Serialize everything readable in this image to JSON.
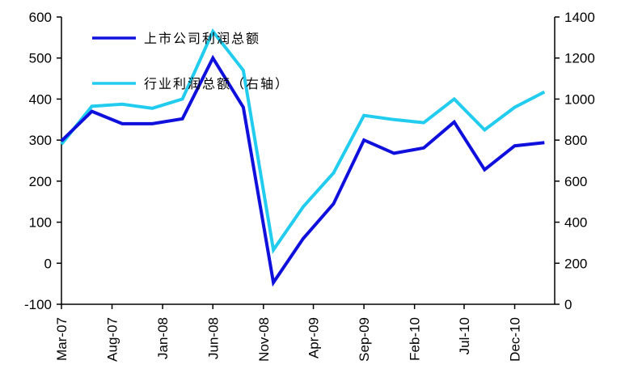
{
  "chart_data": {
    "type": "line",
    "x": [
      "Mar-07",
      "May-07",
      "Jul-07",
      "Sep-07",
      "Nov-07",
      "Jan-08",
      "Mar-08",
      "May-08",
      "Jun-08",
      "Aug-08",
      "Oct-08",
      "Dec-08",
      "Feb-09",
      "Apr-09",
      "Jun-09",
      "Aug-09",
      "Oct-09",
      "Dec-09",
      "Feb-10",
      "Apr-10",
      "Jun-10",
      "Aug-10",
      "Oct-10",
      "Dec-10",
      "Feb-11",
      "Apr-11"
    ],
    "x_tick_labels": [
      "Mar-07",
      "Aug-07",
      "Jan-08",
      "Jun-08",
      "Nov-08",
      "Apr-09",
      "Sep-09",
      "Feb-10",
      "Jul-10",
      "Dec-10"
    ],
    "left_axis": {
      "ylim": [
        -100,
        600
      ],
      "ticks": [
        "-100",
        "0",
        "100",
        "200",
        "300",
        "400",
        "500",
        "600"
      ]
    },
    "right_axis": {
      "ylim": [
        0,
        1400
      ],
      "ticks": [
        "0",
        "200",
        "400",
        "600",
        "800",
        "1000",
        "1200",
        "1400"
      ]
    },
    "series": [
      {
        "name": "上市公司利润总额",
        "axis": "left",
        "color": "#1010dd",
        "points": [
          {
            "x": "Mar-07",
            "y": 298
          },
          {
            "x": "Jun-07",
            "y": 370
          },
          {
            "x": "Sep-07",
            "y": 340
          },
          {
            "x": "Dec-07",
            "y": 340
          },
          {
            "x": "Mar-08",
            "y": 352
          },
          {
            "x": "Jun-08",
            "y": 500
          },
          {
            "x": "Sep-08",
            "y": 380
          },
          {
            "x": "Dec-08",
            "y": -47
          },
          {
            "x": "Mar-09",
            "y": 60
          },
          {
            "x": "Jun-09",
            "y": 145
          },
          {
            "x": "Sep-09",
            "y": 300
          },
          {
            "x": "Dec-09",
            "y": 268
          },
          {
            "x": "Mar-10",
            "y": 281
          },
          {
            "x": "Jun-10",
            "y": 344
          },
          {
            "x": "Sep-10",
            "y": 228
          },
          {
            "x": "Dec-10",
            "y": 286
          },
          {
            "x": "Mar-11",
            "y": 294
          }
        ]
      },
      {
        "name": "行业利润总额（右轴）",
        "axis": "right",
        "color": "#22ccee",
        "points": [
          {
            "x": "Mar-07",
            "y": 780
          },
          {
            "x": "Jun-07",
            "y": 965
          },
          {
            "x": "Sep-07",
            "y": 975
          },
          {
            "x": "Dec-07",
            "y": 955
          },
          {
            "x": "Mar-08",
            "y": 1000
          },
          {
            "x": "Jun-08",
            "y": 1330
          },
          {
            "x": "Sep-08",
            "y": 1140
          },
          {
            "x": "Dec-08",
            "y": 265
          },
          {
            "x": "Mar-09",
            "y": 475
          },
          {
            "x": "Jun-09",
            "y": 640
          },
          {
            "x": "Sep-09",
            "y": 920
          },
          {
            "x": "Dec-09",
            "y": 900
          },
          {
            "x": "Mar-10",
            "y": 885
          },
          {
            "x": "Jun-10",
            "y": 1000
          },
          {
            "x": "Sep-10",
            "y": 850
          },
          {
            "x": "Dec-10",
            "y": 960
          },
          {
            "x": "Mar-11",
            "y": 1035
          }
        ]
      }
    ],
    "legend_position": "top-left",
    "grid": false
  }
}
